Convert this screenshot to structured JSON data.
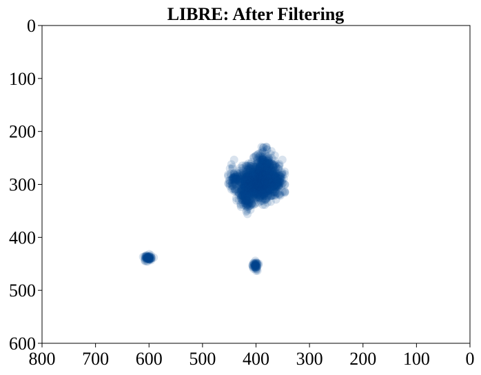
{
  "chart_data": {
    "type": "scatter",
    "title": "LIBRE: After Filtering",
    "xlabel": "",
    "ylabel": "",
    "xlim": [
      800,
      0
    ],
    "ylim": [
      600,
      0
    ],
    "x_inverted": true,
    "y_inverted": true,
    "grid": false,
    "legend": "none",
    "x_ticks": [
      800,
      700,
      600,
      500,
      400,
      300,
      200,
      100,
      0
    ],
    "y_ticks": [
      0,
      100,
      200,
      300,
      400,
      500,
      600
    ],
    "marker_color": "#00428a",
    "marker_alpha": 0.15,
    "clusters": [
      {
        "cx": 396,
        "cy": 296,
        "sx": 20,
        "sy": 17,
        "n": 900
      },
      {
        "cx": 385,
        "cy": 262,
        "sx": 9,
        "sy": 13,
        "n": 140
      },
      {
        "cx": 420,
        "cy": 325,
        "sx": 7,
        "sy": 11,
        "n": 90
      },
      {
        "cx": 365,
        "cy": 292,
        "sx": 7,
        "sy": 12,
        "n": 100
      },
      {
        "cx": 442,
        "cy": 290,
        "sx": 6,
        "sy": 8,
        "n": 50
      },
      {
        "cx": 601,
        "cy": 438,
        "sx": 4,
        "sy": 3,
        "n": 60
      },
      {
        "cx": 401,
        "cy": 453,
        "sx": 2.5,
        "sy": 4,
        "n": 45
      }
    ],
    "points": [
      [
        416,
        356
      ],
      [
        441,
        282
      ],
      [
        386,
        230
      ],
      [
        392,
        245
      ],
      [
        606,
        436
      ],
      [
        596,
        443
      ],
      [
        405,
        449
      ],
      [
        401,
        459
      ],
      [
        350,
        282
      ],
      [
        452,
        298
      ]
    ]
  }
}
